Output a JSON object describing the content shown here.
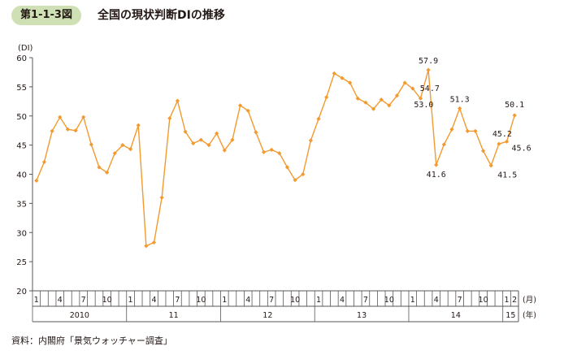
{
  "figure": {
    "number": "第1-1-3図",
    "title": "全国の現状判断DIの推移",
    "source": "資料：内閣府「景気ウォッチャー調査」"
  },
  "chart_data": {
    "type": "line",
    "title": "全国の現状判断DIの推移",
    "ylabel": "(DI)",
    "ylim": [
      20,
      60
    ],
    "yticks": [
      20,
      25,
      30,
      35,
      40,
      45,
      50,
      55,
      60
    ],
    "month_unit_label": "(月)",
    "year_unit_label": "(年)",
    "month_tick_labels": [
      "1",
      "4",
      "7",
      "10",
      "1",
      "4",
      "7",
      "10",
      "1",
      "4",
      "7",
      "10",
      "1",
      "4",
      "7",
      "10",
      "1",
      "4",
      "7",
      "10",
      "1",
      "2"
    ],
    "years": [
      "2010",
      "11",
      "12",
      "13",
      "14",
      "15"
    ],
    "series": [
      {
        "color": "#f39a2e",
        "values": [
          38.9,
          42.1,
          47.4,
          49.8,
          47.7,
          47.5,
          49.8,
          45.1,
          41.2,
          40.3,
          43.6,
          45.0,
          44.3,
          48.4,
          27.7,
          28.3,
          36.0,
          49.6,
          52.6,
          47.3,
          45.3,
          45.9,
          45.0,
          47.0,
          44.1,
          45.9,
          51.8,
          50.9,
          47.2,
          43.8,
          44.2,
          43.6,
          41.2,
          39.0,
          40.0,
          45.8,
          49.5,
          53.2,
          57.3,
          56.5,
          55.7,
          53.0,
          52.3,
          51.2,
          52.8,
          51.8,
          53.5,
          55.7,
          54.7,
          53.0,
          57.9,
          41.6,
          45.1,
          47.7,
          51.3,
          47.4,
          47.4,
          44.0,
          41.5,
          45.2,
          45.6,
          50.1
        ]
      }
    ],
    "data_labels": [
      {
        "index": 48,
        "text": "54.7"
      },
      {
        "index": 49,
        "text": "53.0"
      },
      {
        "index": 50,
        "text": "57.9"
      },
      {
        "index": 51,
        "text": "41.6"
      },
      {
        "index": 54,
        "text": "51.3"
      },
      {
        "index": 58,
        "text": "41.5"
      },
      {
        "index": 59,
        "text": "45.2"
      },
      {
        "index": 60,
        "text": "45.6"
      },
      {
        "index": 61,
        "text": "50.1"
      }
    ],
    "grid": false,
    "legend": "none"
  }
}
